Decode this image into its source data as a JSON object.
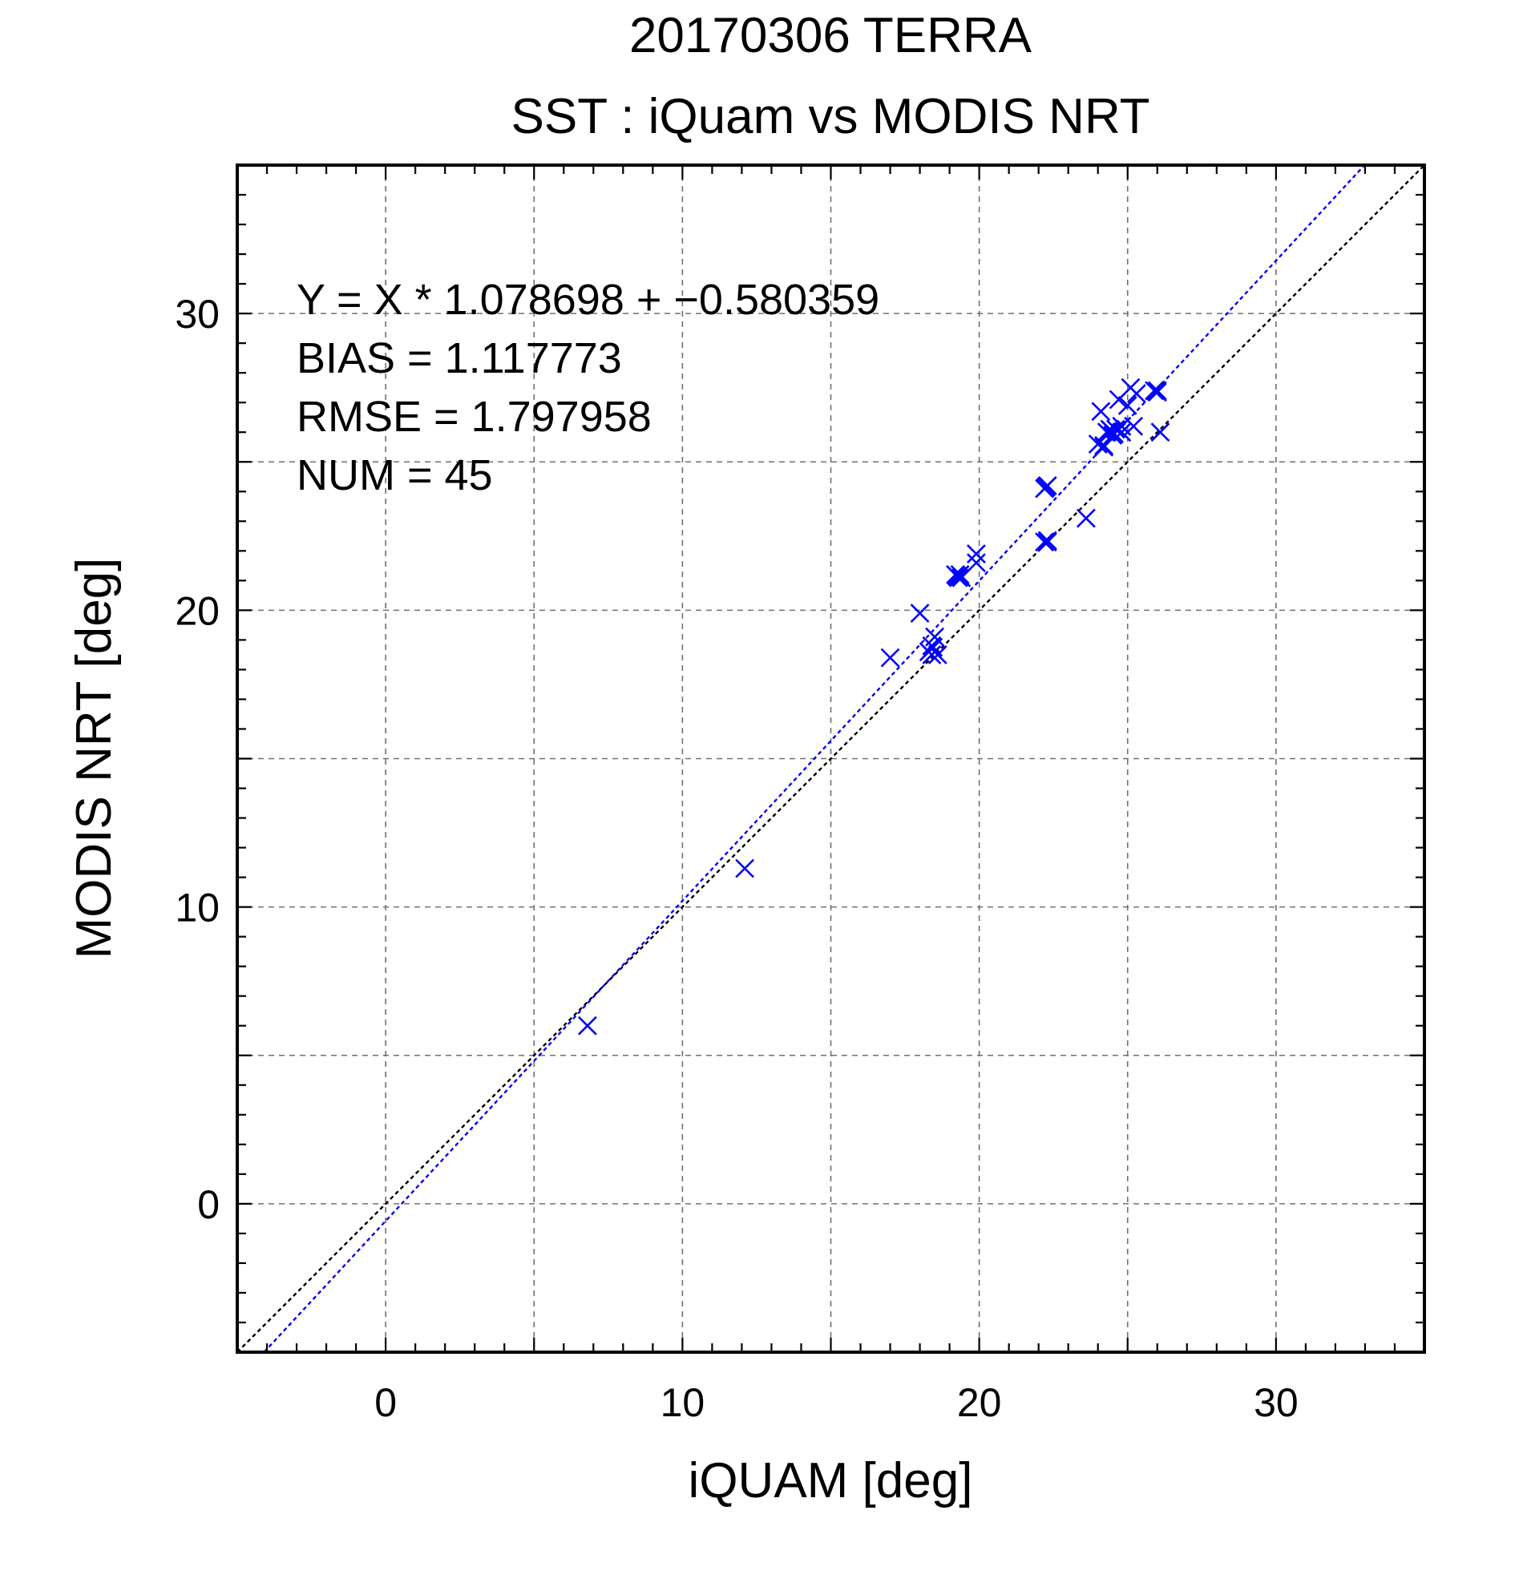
{
  "chart_data": {
    "type": "scatter",
    "title": "20170306 TERRA",
    "subtitle": "SST : iQuam vs MODIS NRT",
    "xlabel": "iQUAM [deg]",
    "ylabel": "MODIS NRT [deg]",
    "xlim": [
      -5,
      35
    ],
    "ylim": [
      -5,
      35
    ],
    "grid": true,
    "xticks": [
      0,
      10,
      20,
      30
    ],
    "yticks": [
      0,
      10,
      20,
      30
    ],
    "xtick_labels": [
      "0",
      "10",
      "20",
      "30"
    ],
    "ytick_labels": [
      "0",
      "10",
      "20",
      "30"
    ],
    "gridlines": [
      -5,
      0,
      5,
      10,
      15,
      20,
      25,
      30,
      35
    ],
    "stats": [
      "Y = X * 1.078698 + −0.580359",
      "BIAS = 1.117773",
      "RMSE = 1.797958",
      "NUM = 45"
    ],
    "fit": {
      "slope": 1.078698,
      "intercept": -0.580359,
      "color": "#0000ff"
    },
    "identity_line": {
      "color": "#000000"
    },
    "marker_color": "#0000ff",
    "points": {
      "x": [
        6.8,
        12.1,
        17.0,
        18.0,
        18.3,
        18.4,
        18.4,
        18.5,
        18.6,
        19.2,
        19.3,
        19.4,
        19.9,
        19.9,
        22.2,
        22.2,
        22.3,
        22.3,
        23.6,
        24.0,
        24.1,
        24.2,
        24.3,
        24.4,
        24.5,
        24.6,
        24.7,
        24.8,
        24.8,
        25.0,
        25.1,
        25.2,
        25.3,
        25.9,
        26.0,
        26.1,
        18.45,
        19.25,
        22.25,
        24.45,
        24.55,
        26.0,
        24.2,
        19.35,
        22.3
      ],
      "y": [
        6.0,
        11.3,
        18.4,
        19.9,
        18.6,
        18.8,
        18.5,
        19.1,
        18.5,
        21.2,
        21.1,
        21.1,
        21.9,
        21.6,
        24.1,
        22.3,
        24.2,
        22.3,
        23.1,
        25.6,
        26.7,
        25.5,
        26.0,
        26.1,
        25.9,
        26.1,
        27.1,
        26.0,
        26.2,
        26.9,
        27.5,
        26.2,
        27.3,
        27.4,
        27.4,
        26.0,
        18.75,
        21.15,
        24.15,
        26.05,
        25.95,
        27.35,
        25.55,
        21.2,
        22.35
      ]
    }
  }
}
